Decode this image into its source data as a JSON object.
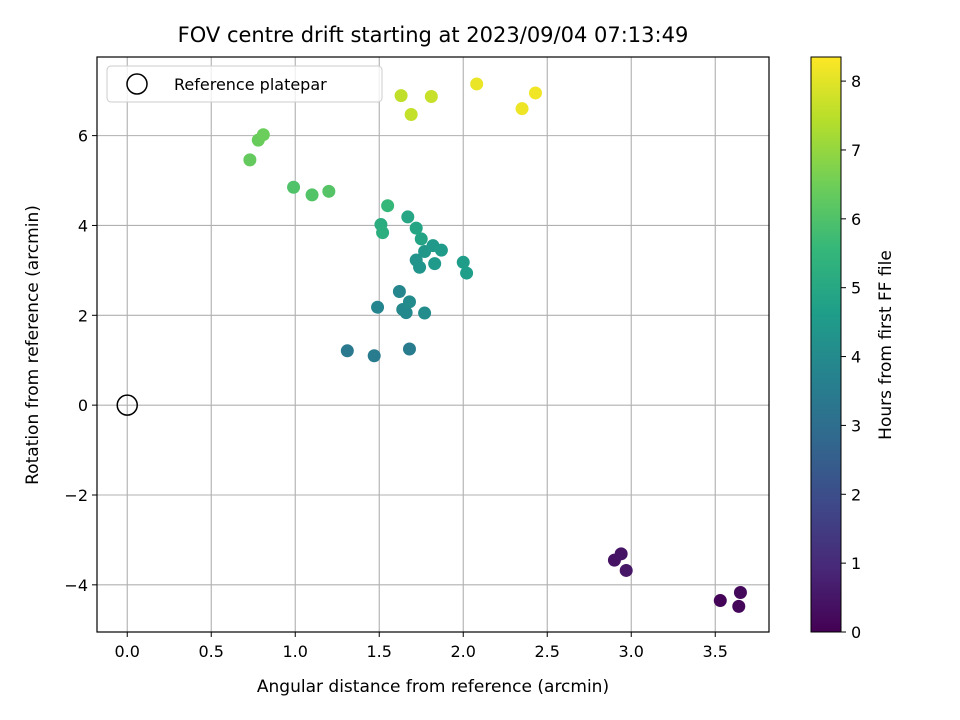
{
  "chart_data": {
    "type": "scatter",
    "title": "FOV centre drift starting at 2023/09/04 07:13:49",
    "xlabel": "Angular distance from reference (arcmin)",
    "ylabel": "Rotation from reference (arcmin)",
    "xlim": [
      -0.18,
      3.82
    ],
    "ylim": [
      -5.05,
      7.75
    ],
    "xticks": [
      0.0,
      0.5,
      1.0,
      1.5,
      2.0,
      2.5,
      3.0,
      3.5
    ],
    "xtick_labels": [
      "0.0",
      "0.5",
      "1.0",
      "1.5",
      "2.0",
      "2.5",
      "3.0",
      "3.5"
    ],
    "yticks": [
      -4,
      -2,
      0,
      2,
      4,
      6
    ],
    "ytick_labels": [
      "−4",
      "−2",
      "0",
      "2",
      "4",
      "6"
    ],
    "grid": true,
    "legend": {
      "location": "upper-left",
      "entries": [
        "Reference platepar"
      ]
    },
    "reference_point": {
      "name": "Reference platepar",
      "x": 0.0,
      "y": 0.0
    },
    "colorbar": {
      "label": "Hours from first FF file",
      "range": [
        0,
        8.35
      ],
      "ticks": [
        0,
        1,
        2,
        3,
        4,
        5,
        6,
        7,
        8
      ],
      "colormap": "viridis",
      "colors": [
        "#440154",
        "#482878",
        "#3e4989",
        "#31688e",
        "#26828e",
        "#1f9e89",
        "#35b779",
        "#6ece58",
        "#b5de2b",
        "#fde725"
      ]
    },
    "series": [
      {
        "points": [
          {
            "x": 3.53,
            "y": -4.35,
            "hours": 0.1
          },
          {
            "x": 3.64,
            "y": -4.48,
            "hours": 0.15
          },
          {
            "x": 3.65,
            "y": -4.17,
            "hours": 0.2
          },
          {
            "x": 2.9,
            "y": -3.45,
            "hours": 0.4
          },
          {
            "x": 2.94,
            "y": -3.31,
            "hours": 0.45
          },
          {
            "x": 2.97,
            "y": -3.68,
            "hours": 0.5
          },
          {
            "x": 1.31,
            "y": 1.21,
            "hours": 3.4
          },
          {
            "x": 1.47,
            "y": 1.1,
            "hours": 3.45
          },
          {
            "x": 1.68,
            "y": 1.25,
            "hours": 3.5
          },
          {
            "x": 1.49,
            "y": 2.18,
            "hours": 3.8
          },
          {
            "x": 1.62,
            "y": 2.53,
            "hours": 3.85
          },
          {
            "x": 1.64,
            "y": 2.13,
            "hours": 3.9
          },
          {
            "x": 1.66,
            "y": 2.06,
            "hours": 3.95
          },
          {
            "x": 1.68,
            "y": 2.3,
            "hours": 4.0
          },
          {
            "x": 1.77,
            "y": 2.05,
            "hours": 4.05
          },
          {
            "x": 1.72,
            "y": 3.23,
            "hours": 4.3
          },
          {
            "x": 1.74,
            "y": 3.07,
            "hours": 4.35
          },
          {
            "x": 1.77,
            "y": 3.42,
            "hours": 4.4
          },
          {
            "x": 1.82,
            "y": 3.55,
            "hours": 4.45
          },
          {
            "x": 1.83,
            "y": 3.15,
            "hours": 4.5
          },
          {
            "x": 1.87,
            "y": 3.45,
            "hours": 4.55
          },
          {
            "x": 2.0,
            "y": 3.18,
            "hours": 4.6
          },
          {
            "x": 2.02,
            "y": 2.94,
            "hours": 4.65
          },
          {
            "x": 1.75,
            "y": 3.7,
            "hours": 4.85
          },
          {
            "x": 1.72,
            "y": 3.94,
            "hours": 4.9
          },
          {
            "x": 1.67,
            "y": 4.19,
            "hours": 4.95
          },
          {
            "x": 1.51,
            "y": 4.02,
            "hours": 5.2
          },
          {
            "x": 1.52,
            "y": 3.84,
            "hours": 5.25
          },
          {
            "x": 1.55,
            "y": 4.44,
            "hours": 5.55
          },
          {
            "x": 0.99,
            "y": 4.85,
            "hours": 6.0
          },
          {
            "x": 1.1,
            "y": 4.68,
            "hours": 6.05
          },
          {
            "x": 1.2,
            "y": 4.76,
            "hours": 6.1
          },
          {
            "x": 0.73,
            "y": 5.46,
            "hours": 6.35
          },
          {
            "x": 0.78,
            "y": 5.9,
            "hours": 6.4
          },
          {
            "x": 0.81,
            "y": 6.02,
            "hours": 6.45
          },
          {
            "x": 1.63,
            "y": 6.89,
            "hours": 7.55
          },
          {
            "x": 1.69,
            "y": 6.47,
            "hours": 7.6
          },
          {
            "x": 1.81,
            "y": 6.87,
            "hours": 7.65
          },
          {
            "x": 2.08,
            "y": 7.15,
            "hours": 8.1
          },
          {
            "x": 2.35,
            "y": 6.6,
            "hours": 8.15
          },
          {
            "x": 2.43,
            "y": 6.95,
            "hours": 8.2
          }
        ]
      }
    ]
  }
}
